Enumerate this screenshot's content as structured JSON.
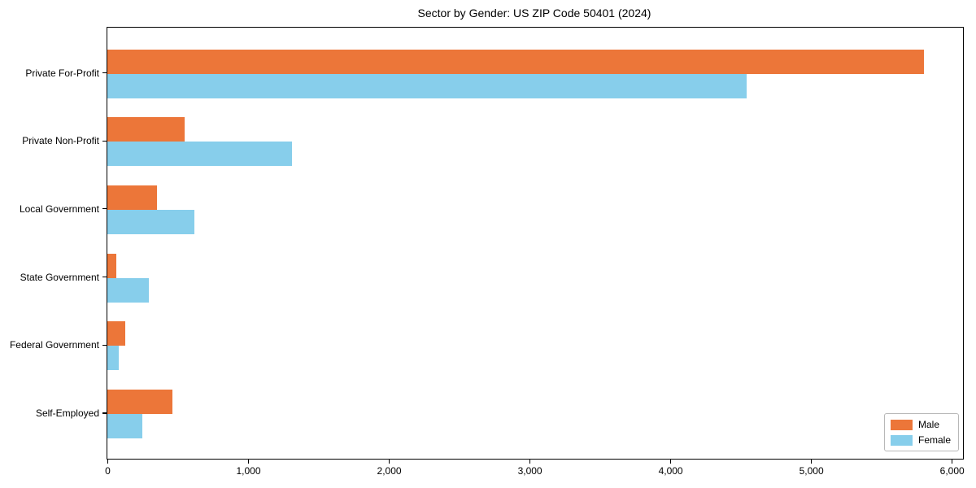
{
  "chart_data": {
    "type": "bar",
    "orientation": "horizontal",
    "title": "Sector by Gender: US ZIP Code 50401 (2024)",
    "categories": [
      "Private For-Profit",
      "Private Non-Profit",
      "Local Government",
      "State Government",
      "Federal Government",
      "Self-Employed"
    ],
    "series": [
      {
        "name": "Male",
        "color": "#EC7639",
        "values": [
          5800,
          550,
          350,
          65,
          125,
          460
        ]
      },
      {
        "name": "Female",
        "color": "#87CEEB",
        "values": [
          4540,
          1310,
          620,
          295,
          80,
          250
        ]
      }
    ],
    "xlabel": "",
    "ylabel": "",
    "xlim": [
      0,
      6080
    ],
    "xticks": {
      "values": [
        0,
        1000,
        2000,
        3000,
        4000,
        5000,
        6000
      ],
      "labels": [
        "0",
        "1,000",
        "2,000",
        "3,000",
        "4,000",
        "5,000",
        "6,000"
      ]
    },
    "grid": false,
    "legend": {
      "position": "lower right",
      "labels": [
        "Male",
        "Female"
      ]
    }
  },
  "colors": {
    "background": "#ffffff",
    "axis": "#000000",
    "legend_border": "#b8b8b8"
  }
}
